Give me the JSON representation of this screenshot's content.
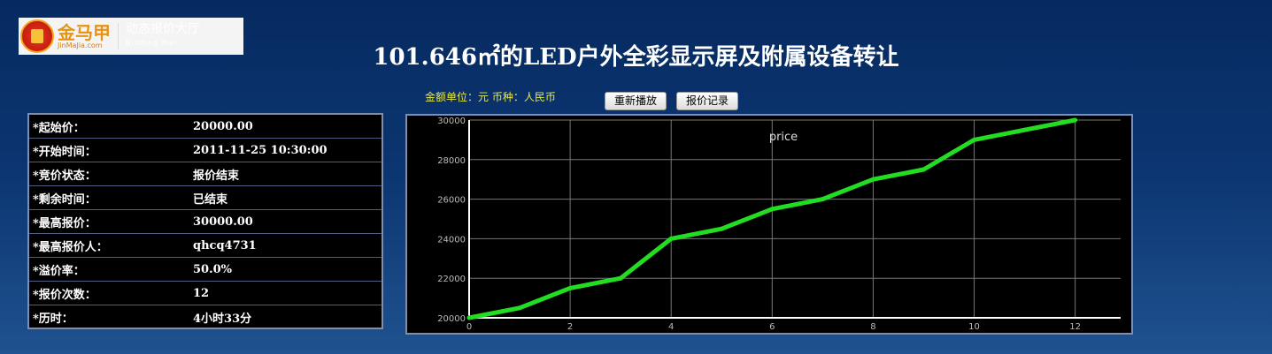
{
  "logo": {
    "brand_cn": "金马甲",
    "brand_en": "JinMaJia.com",
    "hall_cn": "动态报价大厅",
    "hall_en": "Bidding Hall"
  },
  "title": "101.646㎡的LED户外全彩显示屏及附属设备转让",
  "unit_text": "金额单位：元  币种：人民币",
  "buttons": {
    "replay": "重新播放",
    "records": "报价记录"
  },
  "info": [
    {
      "label": "*起始价：",
      "value": "20000.00"
    },
    {
      "label": "*开始时间：",
      "value": "2011-11-25 10:30:00"
    },
    {
      "label": "*竞价状态：",
      "value": "报价结束"
    },
    {
      "label": "*剩余时间：",
      "value": "已结束"
    },
    {
      "label": "*最高报价：",
      "value": "30000.00"
    },
    {
      "label": "*最高报价人：",
      "value": "qhcq4731"
    },
    {
      "label": "*溢价率：",
      "value": "50.0%"
    },
    {
      "label": "*报价次数：",
      "value": "12"
    },
    {
      "label": "*历时：",
      "value": "4小时33分"
    }
  ],
  "chart_data": {
    "type": "line",
    "title": "price",
    "x": [
      0,
      1,
      2,
      3,
      4,
      5,
      6,
      7,
      8,
      9,
      10,
      11,
      12
    ],
    "series": [
      {
        "values": [
          20000,
          20500,
          21500,
          22000,
          24000,
          24500,
          25500,
          26000,
          27000,
          27500,
          29000,
          29500,
          30000
        ],
        "color": "#22dd22"
      }
    ],
    "xticks": [
      0,
      2,
      4,
      6,
      8,
      10,
      12
    ],
    "yticks": [
      20000,
      22000,
      24000,
      26000,
      28000,
      30000
    ],
    "xlim": [
      0,
      12.9
    ],
    "ylim": [
      20000,
      30000
    ],
    "grid": true,
    "background": "#000000"
  }
}
